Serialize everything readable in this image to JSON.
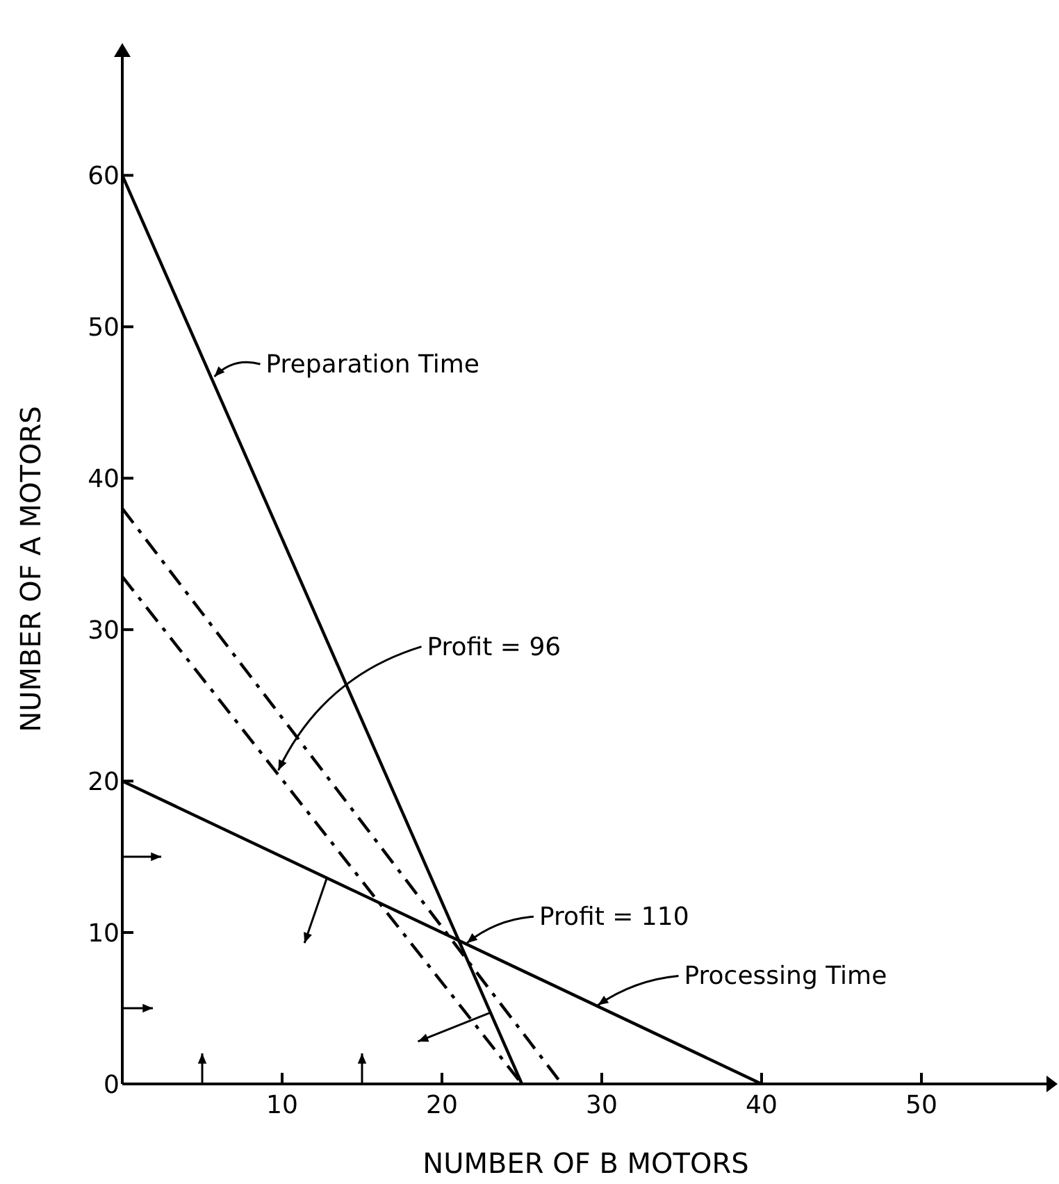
{
  "chart_data": {
    "type": "line",
    "xlabel": "NUMBER OF B MOTORS",
    "ylabel": "NUMBER OF A MOTORS",
    "xlim": [
      0,
      58
    ],
    "ylim": [
      0,
      68
    ],
    "xticks": [
      10,
      20,
      30,
      40,
      50
    ],
    "yticks": [
      0,
      10,
      20,
      30,
      40,
      50,
      60
    ],
    "grid": false,
    "series": [
      {
        "color": "#000000",
        "x": [
          0,
          25
        ],
        "values": [
          60,
          0
        ],
        "line_style": "solid"
      },
      {
        "color": "#000000",
        "x": [
          0,
          40
        ],
        "values": [
          20,
          0
        ],
        "line_style": "solid"
      },
      {
        "color": "#000000",
        "x": [
          0,
          27.5
        ],
        "values": [
          38,
          0
        ],
        "line_style": "dashed"
      },
      {
        "color": "#000000",
        "x": [
          0,
          25
        ],
        "values": [
          33.5,
          0
        ],
        "line_style": "dashed"
      }
    ],
    "annotations": [
      {
        "text": "Preparation Time",
        "x": 5.5,
        "y": 46.8
      },
      {
        "text": "Profit = 96",
        "x": 9.5,
        "y": 20.8
      },
      {
        "text": "Profit = 110",
        "x": 21.3,
        "y": 9.4
      },
      {
        "text": "Processing Time",
        "x": 29.5,
        "y": 5.3
      }
    ]
  }
}
